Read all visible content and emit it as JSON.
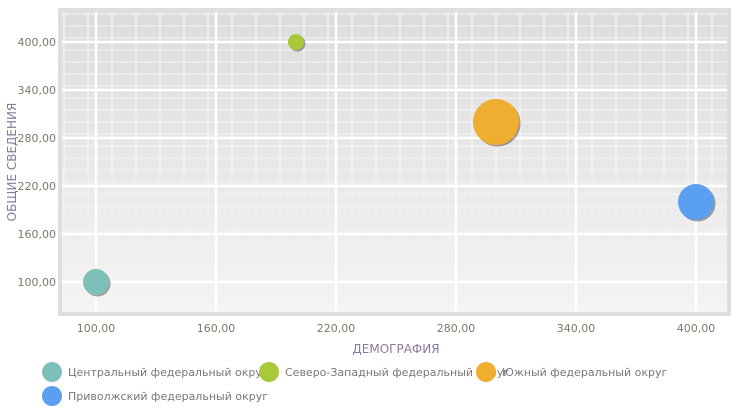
{
  "chart_data": {
    "type": "scatter",
    "subtype": "bubble",
    "xlabel": "ДЕМОГРАФИЯ",
    "ylabel": "ОБЩИЕ СВЕДЕНИЯ",
    "xlim": [
      83,
      415.5
    ],
    "ylim": [
      62.5,
      437.5
    ],
    "xticks": [
      "100,00",
      "160,00",
      "220,00",
      "280,00",
      "340,00",
      "400,00"
    ],
    "xtick_values": [
      100,
      160,
      220,
      280,
      340,
      400
    ],
    "yticks": [
      "100,00",
      "160,00",
      "220,00",
      "280,00",
      "340,00",
      "400,00"
    ],
    "ytick_values": [
      100,
      160,
      220,
      280,
      340,
      400
    ],
    "grid": true,
    "legend_position": "bottom",
    "series": [
      {
        "name": "Центральный федеральный округ",
        "x": 100,
        "y": 100,
        "size": 13,
        "color": "#7fbfba"
      },
      {
        "name": "Северо-Западный федеральный округ",
        "x": 200,
        "y": 400,
        "size": 8,
        "color": "#a9c83a"
      },
      {
        "name": "Южный федеральный округ",
        "x": 300,
        "y": 300,
        "size": 23,
        "color": "#f0ae30"
      },
      {
        "name": "Приволжский федеральный округ",
        "x": 400,
        "y": 200,
        "size": 18,
        "color": "#5a9ff0"
      }
    ]
  }
}
